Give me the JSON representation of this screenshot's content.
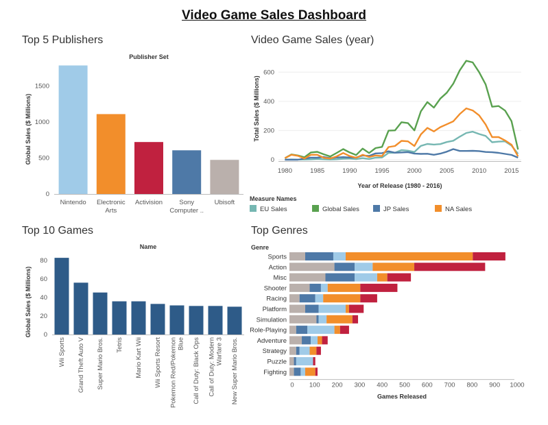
{
  "dashboard": {
    "title": "Video Game Sales Dashboard"
  },
  "panels": {
    "publishers_title": "Top 5 Publishers",
    "yearly_title": "Video Game Sales (year)",
    "games_title": "Top 10 Games",
    "genres_title": "Top Genres"
  },
  "chart_data": [
    {
      "id": "publishers",
      "type": "bar",
      "title": "Publisher Set",
      "ylabel": "Global Sales ($ Millions)",
      "xlabel": "",
      "categories": [
        "Nintendo",
        "Electronic Arts",
        "Activision",
        "Sony Computer ..",
        "Ubisoft"
      ],
      "category_lines": [
        [
          "Nintendo"
        ],
        [
          "Electronic",
          "Arts"
        ],
        [
          "Activision"
        ],
        [
          "Sony",
          "Computer .."
        ],
        [
          "Ubisoft"
        ]
      ],
      "values": [
        1786,
        1110,
        722,
        607,
        474
      ],
      "colors": [
        "#a0cbe8",
        "#f28e2b",
        "#c0213f",
        "#4e79a7",
        "#bab0ac"
      ],
      "ylim": [
        0,
        1800
      ],
      "yticks": [
        0,
        500,
        1000,
        1500
      ]
    },
    {
      "id": "yearly",
      "type": "line",
      "ylabel": "Total Sales ($ Millions)",
      "xlabel": "Year of Release (1980 - 2016)",
      "xlim": [
        1979,
        2016.5
      ],
      "ylim": [
        0,
        700
      ],
      "xticks": [
        1980,
        1985,
        1990,
        1995,
        2000,
        2005,
        2010,
        2015
      ],
      "yticks": [
        0,
        200,
        400,
        600
      ],
      "legend_title": "Measure Names",
      "x": [
        1980,
        1981,
        1982,
        1983,
        1984,
        1985,
        1986,
        1987,
        1988,
        1989,
        1990,
        1991,
        1992,
        1993,
        1994,
        1995,
        1996,
        1997,
        1998,
        1999,
        2000,
        2001,
        2002,
        2003,
        2004,
        2005,
        2006,
        2007,
        2008,
        2009,
        2010,
        2011,
        2012,
        2013,
        2014,
        2015,
        2016
      ],
      "series": [
        {
          "name": "EU Sales",
          "color": "#76b7b2",
          "values": [
            1,
            2,
            1,
            1,
            2,
            5,
            3,
            1,
            3,
            7,
            8,
            4,
            11,
            5,
            14,
            15,
            47,
            48,
            66,
            62,
            53,
            95,
            108,
            104,
            107,
            121,
            130,
            158,
            183,
            192,
            176,
            163,
            120,
            124,
            126,
            97,
            40
          ]
        },
        {
          "name": "Global Sales",
          "color": "#59a14f",
          "values": [
            11,
            36,
            29,
            17,
            50,
            54,
            37,
            22,
            47,
            73,
            50,
            32,
            76,
            46,
            80,
            88,
            199,
            201,
            257,
            251,
            201,
            332,
            395,
            357,
            419,
            459,
            521,
            612,
            678,
            667,
            600,
            516,
            363,
            368,
            337,
            264,
            70
          ]
        },
        {
          "name": "JP Sales",
          "color": "#4e79a7",
          "values": [
            0,
            0,
            0,
            8,
            14,
            14,
            19,
            11,
            15,
            18,
            15,
            15,
            29,
            26,
            43,
            45,
            58,
            48,
            50,
            52,
            42,
            40,
            41,
            34,
            42,
            55,
            73,
            60,
            60,
            61,
            59,
            53,
            51,
            47,
            40,
            33,
            14
          ]
        },
        {
          "name": "NA Sales",
          "color": "#f28e2b",
          "values": [
            11,
            34,
            27,
            8,
            34,
            34,
            13,
            8,
            23,
            46,
            25,
            13,
            34,
            19,
            29,
            25,
            87,
            94,
            129,
            126,
            94,
            174,
            218,
            194,
            223,
            243,
            263,
            313,
            352,
            338,
            304,
            241,
            155,
            155,
            132,
            103,
            23
          ]
        }
      ]
    },
    {
      "id": "games",
      "type": "bar",
      "title": "Name",
      "ylabel": "Global Sales ($ Millions)",
      "categories": [
        "Wii Sports",
        "Grand Theft Auto V",
        "Super Mario Bros.",
        "Tetris",
        "Mario Kart Wii",
        "Wii Sports Resort",
        "Pokemon Red/Pokemon Blue",
        "Call of Duty: Black Ops",
        "Call of Duty: Modern Warfare 3",
        "New Super Mario Bros."
      ],
      "category_lines": [
        [
          "Wii Sports"
        ],
        [
          "Grand Theft Auto V"
        ],
        [
          "Super Mario Bros."
        ],
        [
          "Tetris"
        ],
        [
          "Mario Kart Wii"
        ],
        [
          "Wii Sports Resort"
        ],
        [
          "Pokemon Red/Pokemon",
          "Blue"
        ],
        [
          "Call of Duty: Black Ops"
        ],
        [
          "Call of Duty: Modern",
          "Warfare 3"
        ],
        [
          "New Super Mario Bros."
        ]
      ],
      "values": [
        82.7,
        55.9,
        45.3,
        35.8,
        35.8,
        33.0,
        31.4,
        30.8,
        30.8,
        30.0
      ],
      "color": "#2e5b88",
      "ylim": [
        0,
        85
      ],
      "yticks": [
        0,
        20,
        40,
        60,
        80
      ]
    },
    {
      "id": "genres",
      "type": "bar",
      "orientation": "horizontal",
      "stacked": true,
      "title": "Genre",
      "xlabel": "Games Released",
      "xlim": [
        0,
        1000
      ],
      "xticks": [
        0,
        100,
        200,
        300,
        400,
        500,
        600,
        700,
        800,
        900,
        1000
      ],
      "categories": [
        "Sports",
        "Action",
        "Misc",
        "Shooter",
        "Racing",
        "Platform",
        "Simulation",
        "Role-Playing",
        "Adventure",
        "Strategy",
        "Puzzle",
        "Fighting"
      ],
      "series": [
        {
          "color": "#bab0ac",
          "values": [
            70,
            200,
            160,
            90,
            45,
            70,
            120,
            30,
            55,
            30,
            20,
            20
          ]
        },
        {
          "color": "#4e79a7",
          "values": [
            125,
            90,
            130,
            50,
            70,
            60,
            10,
            50,
            40,
            15,
            10,
            30
          ]
        },
        {
          "color": "#a0cbe8",
          "values": [
            55,
            80,
            100,
            30,
            35,
            120,
            35,
            120,
            30,
            45,
            75,
            20
          ]
        },
        {
          "color": "#f28e2b",
          "values": [
            565,
            185,
            45,
            145,
            165,
            15,
            115,
            25,
            20,
            30,
            0,
            45
          ]
        },
        {
          "color": "#c0213f",
          "values": [
            145,
            315,
            105,
            165,
            75,
            65,
            25,
            40,
            25,
            20,
            10,
            10
          ]
        }
      ]
    }
  ]
}
